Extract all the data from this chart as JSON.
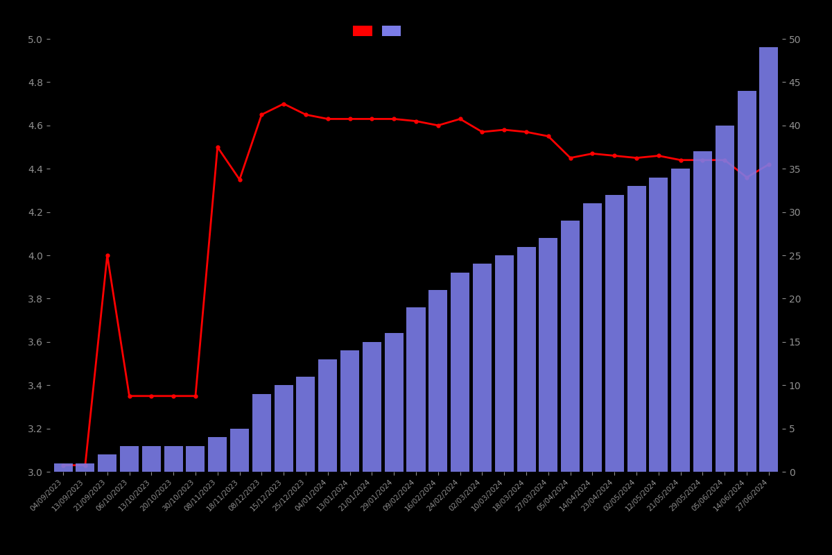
{
  "dates": [
    "04/09/2023",
    "13/09/2023",
    "21/09/2023",
    "06/10/2023",
    "13/10/2023",
    "20/10/2023",
    "30/10/2023",
    "08/11/2023",
    "18/11/2023",
    "08/12/2023",
    "15/12/2023",
    "25/12/2023",
    "04/01/2024",
    "13/01/2024",
    "21/01/2024",
    "29/01/2024",
    "09/02/2024",
    "16/02/2024",
    "24/02/2024",
    "02/03/2024",
    "10/03/2024",
    "18/03/2024",
    "27/03/2024",
    "05/04/2024",
    "14/04/2024",
    "23/04/2024",
    "02/05/2024",
    "12/05/2024",
    "21/05/2024",
    "29/05/2024",
    "05/06/2024",
    "14/06/2024",
    "27/06/2024"
  ],
  "ratings": [
    3.03,
    3.03,
    4.0,
    3.35,
    3.35,
    3.35,
    3.35,
    4.5,
    4.35,
    4.65,
    4.7,
    4.65,
    4.63,
    4.63,
    4.63,
    4.63,
    4.62,
    4.6,
    4.63,
    4.57,
    4.58,
    4.57,
    4.55,
    4.45,
    4.47,
    4.46,
    4.45,
    4.46,
    4.44,
    4.44,
    4.44,
    4.36,
    4.42
  ],
  "bar_counts": [
    1,
    1,
    2,
    3,
    3,
    3,
    3,
    4,
    5,
    9,
    10,
    11,
    13,
    14,
    15,
    16,
    19,
    21,
    23,
    24,
    25,
    26,
    27,
    29,
    31,
    32,
    33,
    34,
    35,
    37,
    40,
    44,
    49
  ],
  "bar_color": "#7b7ce8",
  "line_color": "#ff0000",
  "marker_color": "#ff0000",
  "background_color": "#000000",
  "text_color": "#909090",
  "left_ylim": [
    3.0,
    5.0
  ],
  "right_ylim": [
    0,
    50
  ],
  "left_yticks": [
    3.0,
    3.2,
    3.4,
    3.6,
    3.8,
    4.0,
    4.2,
    4.4,
    4.6,
    4.8,
    5.0
  ],
  "right_yticks": [
    0,
    5,
    10,
    15,
    20,
    25,
    30,
    35,
    40,
    45,
    50
  ]
}
